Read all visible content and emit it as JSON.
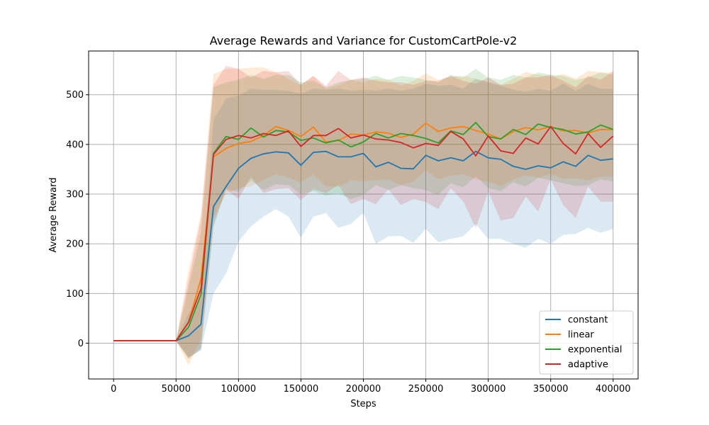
{
  "chart_data": {
    "type": "line",
    "title": "Average Rewards and Variance for CustomCartPole-v2",
    "xlabel": "Steps",
    "ylabel": "Average Reward",
    "xlim": [
      -20000,
      420000
    ],
    "ylim": [
      -72,
      588
    ],
    "xticks": [
      0,
      50000,
      100000,
      150000,
      200000,
      250000,
      300000,
      350000,
      400000
    ],
    "yticks": [
      0,
      100,
      200,
      300,
      400,
      500
    ],
    "grid": true,
    "legend_position": "lower-right",
    "x": [
      0,
      10000,
      20000,
      30000,
      40000,
      50000,
      60000,
      70000,
      80000,
      90000,
      100000,
      110000,
      120000,
      130000,
      140000,
      150000,
      160000,
      170000,
      180000,
      190000,
      200000,
      210000,
      220000,
      230000,
      240000,
      250000,
      260000,
      270000,
      280000,
      290000,
      300000,
      310000,
      320000,
      330000,
      340000,
      350000,
      360000,
      370000,
      380000,
      390000,
      400000
    ],
    "series": [
      {
        "name": "constant",
        "color": "#1f77b4",
        "values": [
          5,
          5,
          5,
          5,
          5,
          5,
          15,
          38,
          275,
          315,
          352,
          372,
          381,
          385,
          383,
          358,
          384,
          386,
          375,
          375,
          382,
          355,
          364,
          352,
          351,
          378,
          367,
          373,
          367,
          386,
          373,
          370,
          356,
          350,
          357,
          353,
          365,
          356,
          378,
          368,
          371
        ],
        "lower": [
          5,
          5,
          5,
          5,
          5,
          5,
          -28,
          -15,
          100,
          140,
          205,
          235,
          255,
          270,
          255,
          212,
          255,
          262,
          232,
          240,
          262,
          200,
          215,
          216,
          202,
          230,
          203,
          210,
          215,
          240,
          210,
          210,
          200,
          192,
          210,
          200,
          218,
          220,
          232,
          222,
          230
        ],
        "upper": [
          5,
          5,
          5,
          5,
          5,
          5,
          60,
          90,
          450,
          492,
          498,
          512,
          510,
          510,
          508,
          502,
          512,
          510,
          512,
          508,
          510,
          508,
          512,
          508,
          512,
          522,
          518,
          520,
          512,
          532,
          525,
          518,
          510,
          506,
          512,
          508,
          522,
          508,
          522,
          512,
          512
        ]
      },
      {
        "name": "linear",
        "color": "#ff7f0e",
        "values": [
          5,
          5,
          5,
          5,
          5,
          5,
          42,
          130,
          375,
          392,
          402,
          406,
          418,
          436,
          428,
          416,
          435,
          405,
          408,
          421,
          419,
          425,
          423,
          414,
          421,
          443,
          426,
          433,
          436,
          428,
          421,
          411,
          426,
          434,
          429,
          436,
          427,
          428,
          423,
          430,
          430
        ],
        "lower": [
          5,
          5,
          5,
          5,
          5,
          5,
          -44,
          10,
          255,
          300,
          312,
          316,
          328,
          340,
          333,
          323,
          340,
          316,
          315,
          328,
          326,
          328,
          330,
          318,
          325,
          348,
          330,
          337,
          340,
          330,
          325,
          316,
          330,
          338,
          333,
          340,
          331,
          332,
          328,
          335,
          335
        ],
        "upper": [
          5,
          5,
          5,
          5,
          5,
          5,
          148,
          262,
          542,
          552,
          552,
          555,
          555,
          546,
          532,
          520,
          538,
          512,
          520,
          530,
          525,
          532,
          530,
          518,
          528,
          543,
          530,
          536,
          538,
          532,
          526,
          520,
          532,
          546,
          540,
          536,
          542,
          532,
          548,
          545,
          545
        ]
      },
      {
        "name": "exponential",
        "color": "#2ca02c",
        "values": [
          5,
          5,
          5,
          5,
          5,
          5,
          32,
          98,
          382,
          416,
          410,
          433,
          415,
          428,
          425,
          408,
          413,
          403,
          409,
          395,
          405,
          422,
          413,
          422,
          418,
          412,
          403,
          427,
          420,
          444,
          416,
          411,
          430,
          420,
          441,
          434,
          430,
          421,
          425,
          439,
          430
        ],
        "lower": [
          5,
          5,
          5,
          5,
          5,
          5,
          -32,
          -12,
          232,
          310,
          305,
          328,
          308,
          320,
          318,
          300,
          306,
          297,
          302,
          290,
          298,
          318,
          308,
          318,
          312,
          308,
          298,
          322,
          314,
          336,
          312,
          306,
          324,
          315,
          333,
          328,
          322,
          316,
          318,
          330,
          325
        ],
        "upper": [
          5,
          5,
          5,
          5,
          5,
          5,
          112,
          222,
          515,
          525,
          530,
          540,
          532,
          540,
          540,
          525,
          528,
          515,
          525,
          530,
          532,
          538,
          530,
          538,
          535,
          530,
          525,
          540,
          535,
          552,
          535,
          530,
          540,
          535,
          545,
          540,
          538,
          530,
          535,
          545,
          540
        ]
      },
      {
        "name": "adaptive",
        "color": "#d62728",
        "values": [
          5,
          5,
          5,
          5,
          5,
          5,
          42,
          110,
          380,
          410,
          418,
          413,
          422,
          418,
          427,
          396,
          418,
          418,
          432,
          413,
          419,
          411,
          409,
          404,
          393,
          402,
          398,
          426,
          411,
          377,
          417,
          387,
          382,
          413,
          401,
          436,
          402,
          381,
          422,
          394,
          417
        ],
        "lower": [
          5,
          5,
          5,
          5,
          5,
          5,
          -30,
          -10,
          240,
          310,
          290,
          335,
          302,
          310,
          312,
          288,
          310,
          302,
          318,
          280,
          290,
          280,
          310,
          278,
          290,
          284,
          270,
          312,
          285,
          232,
          305,
          247,
          252,
          295,
          265,
          330,
          278,
          252,
          315,
          285,
          285
        ],
        "upper": [
          5,
          5,
          5,
          5,
          5,
          5,
          128,
          250,
          520,
          558,
          552,
          535,
          548,
          545,
          548,
          520,
          538,
          518,
          548,
          530,
          535,
          528,
          525,
          525,
          520,
          528,
          528,
          538,
          528,
          522,
          535,
          520,
          522,
          535,
          535,
          540,
          528,
          515,
          538,
          530,
          548
        ]
      }
    ]
  }
}
